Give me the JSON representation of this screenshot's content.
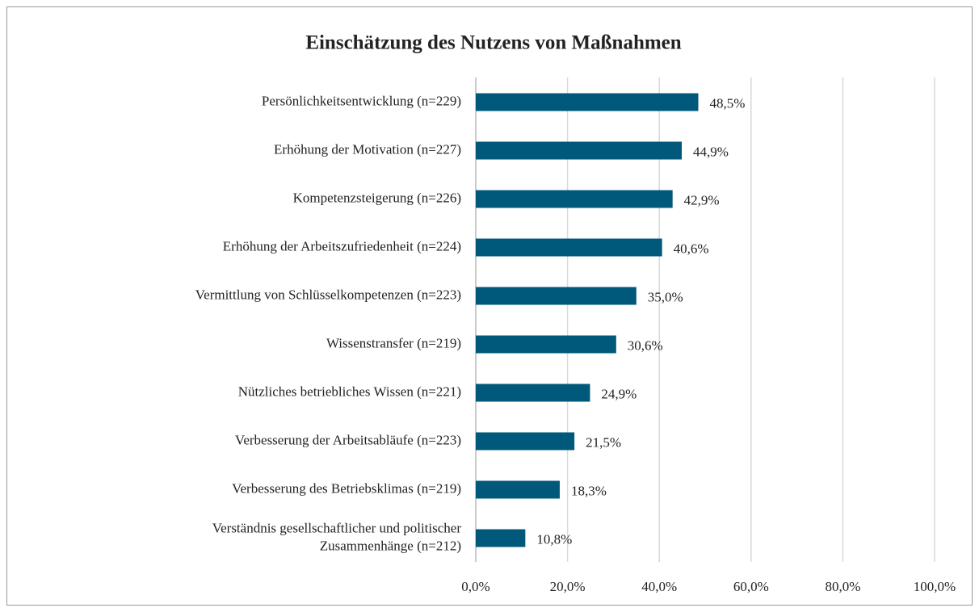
{
  "chart_data": {
    "type": "bar",
    "orientation": "horizontal",
    "title": "Einschätzung des Nutzens von Maßnahmen",
    "categories": [
      "Persönlichkeitsentwicklung (n=229)",
      "Erhöhung der Motivation (n=227)",
      "Kompetenzsteigerung (n=226)",
      "Erhöhung der Arbeitszufriedenheit (n=224)",
      "Vermittlung von Schlüsselkompetenzen (n=223)",
      "Wissenstransfer (n=219)",
      "Nützliches betriebliches Wissen (n=221)",
      "Verbesserung der Arbeitsabläufe (n=223)",
      "Verbesserung des Betriebsklimas (n=219)",
      "Verständnis gesellschaftlicher und politischer\nZusammenhänge (n=212)"
    ],
    "values": [
      48.5,
      44.9,
      42.9,
      40.6,
      35.0,
      30.6,
      24.9,
      21.5,
      18.3,
      10.8
    ],
    "value_labels": [
      "48,5%",
      "44,9%",
      "42,9%",
      "40,6%",
      "35,0%",
      "30,6%",
      "24,9%",
      "21,5%",
      "18,3%",
      "10,8%"
    ],
    "color": "#00587a",
    "xlim": [
      0,
      100
    ],
    "xticks": [
      {
        "value": 0,
        "label": "0,0%"
      },
      {
        "value": 20,
        "label": "20,0%"
      },
      {
        "value": 40,
        "label": "40,0%"
      },
      {
        "value": 60,
        "label": "60,0%"
      },
      {
        "value": 80,
        "label": "80,0%"
      },
      {
        "value": 100,
        "label": "100,0%"
      }
    ],
    "grid": true
  }
}
